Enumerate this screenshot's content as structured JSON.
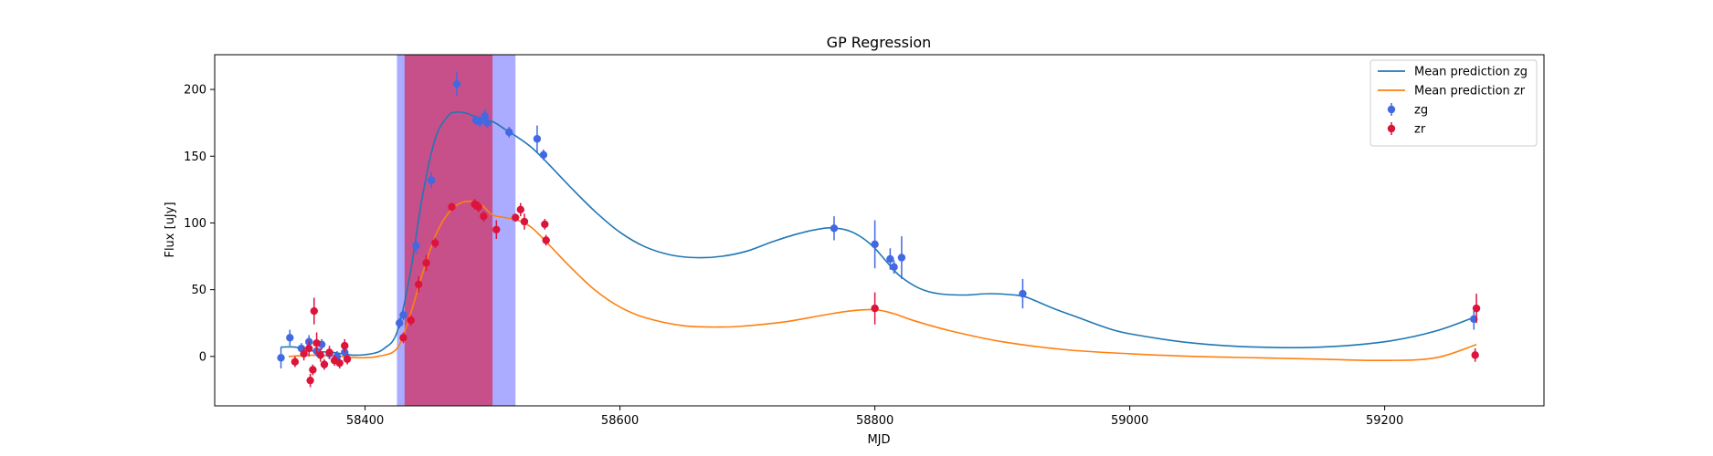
{
  "chart_data": {
    "type": "line",
    "title": "GP Regression",
    "xlabel": "MJD",
    "ylabel": "Flux [uJy]",
    "xlim": [
      58282,
      59325
    ],
    "ylim": [
      -37,
      226
    ],
    "xticks": [
      58400,
      58600,
      58800,
      59000,
      59200
    ],
    "yticks": [
      0,
      50,
      100,
      150,
      200
    ],
    "grid": false,
    "legend_position": "top-right",
    "legend": [
      {
        "label": "Mean prediction zg",
        "kind": "line",
        "color": "#1f77b4"
      },
      {
        "label": "Mean prediction zr",
        "kind": "line",
        "color": "#ff7f0e"
      },
      {
        "label": "zg",
        "kind": "errorbar",
        "color": "#4169e1"
      },
      {
        "label": "zr",
        "kind": "errorbar",
        "color": "#dc143c"
      }
    ],
    "shaded_regions": [
      {
        "x0": 58425,
        "x1": 58518,
        "color": "#0000ff",
        "opacity": 0.33
      },
      {
        "x0": 58431,
        "x1": 58500,
        "color": "#dc143c",
        "opacity": 0.6
      }
    ],
    "series": [
      {
        "name": "Mean prediction zg",
        "kind": "line",
        "color": "#1f77b4",
        "x": [
          58334,
          58345,
          58360,
          58375,
          58390,
          58405,
          58415,
          58425,
          58435,
          58445,
          58455,
          58465,
          58472,
          58480,
          58490,
          58500,
          58510,
          58520,
          58530,
          58540,
          58560,
          58580,
          58600,
          58620,
          58640,
          58660,
          58680,
          58700,
          58720,
          58740,
          58760,
          58770,
          58780,
          58790,
          58800,
          58810,
          58820,
          58835,
          58850,
          58870,
          58890,
          58910,
          58920,
          58940,
          58960,
          58980,
          59000,
          59050,
          59100,
          59150,
          59200,
          59240,
          59272
        ],
        "y": [
          7,
          7,
          4,
          3,
          1,
          2,
          6,
          18,
          60,
          120,
          163,
          180,
          183,
          182,
          178,
          176,
          170,
          164,
          157,
          148,
          128,
          109,
          93,
          82,
          76,
          74,
          75,
          79,
          86,
          92,
          96,
          96,
          94,
          89,
          81,
          70,
          60,
          51,
          47,
          46,
          47,
          46,
          44,
          36,
          29,
          22,
          17,
          10,
          7,
          7,
          11,
          19,
          30
        ]
      },
      {
        "name": "Mean prediction zr",
        "kind": "line",
        "color": "#ff7f0e",
        "x": [
          58340,
          58360,
          58380,
          58395,
          58410,
          58425,
          58435,
          58445,
          58455,
          58465,
          58475,
          58485,
          58492,
          58500,
          58510,
          58520,
          58530,
          58540,
          58560,
          58580,
          58600,
          58620,
          58650,
          58680,
          58700,
          58730,
          58760,
          58780,
          58800,
          58815,
          58830,
          58860,
          58900,
          58950,
          59000,
          59050,
          59100,
          59150,
          59200,
          59240,
          59272
        ],
        "y": [
          0,
          1,
          0,
          -1,
          0,
          6,
          30,
          62,
          90,
          107,
          115,
          116,
          113,
          106,
          104,
          102,
          97,
          88,
          68,
          50,
          37,
          29,
          23,
          22,
          23,
          26,
          31,
          34,
          35,
          32,
          27,
          19,
          11,
          5,
          2,
          0,
          -1,
          -2,
          -3,
          -1,
          9
        ]
      },
      {
        "name": "zg",
        "kind": "errorbar",
        "color": "#4169e1",
        "x": [
          58334,
          58341,
          58350,
          58356,
          58362,
          58366,
          58372,
          58378,
          58384,
          58427,
          58430,
          58440,
          58452,
          58472,
          58487,
          58490,
          58494,
          58496,
          58513,
          58535,
          58540,
          58768,
          58800,
          58812,
          58815,
          58821,
          58916,
          59270
        ],
        "y": [
          -1,
          14,
          6,
          11,
          4,
          9,
          2,
          0,
          3,
          25,
          31,
          83,
          132,
          204,
          177,
          176,
          180,
          175,
          168,
          163,
          151,
          96,
          84,
          73,
          67,
          74,
          47,
          28
        ],
        "err": [
          8,
          6,
          4,
          5,
          4,
          4,
          4,
          4,
          4,
          4,
          4,
          6,
          6,
          9,
          4,
          4,
          5,
          4,
          4,
          10,
          4,
          9,
          18,
          8,
          5,
          16,
          11,
          8
        ]
      },
      {
        "name": "zr",
        "kind": "errorbar",
        "color": "#dc143c",
        "x": [
          58345,
          58352,
          58356,
          58357,
          58359,
          58360,
          58362,
          58365,
          58368,
          58372,
          58376,
          58380,
          58384,
          58386,
          58430,
          58436,
          58442,
          58448,
          58455,
          58468,
          58486,
          58489,
          58493,
          58503,
          58518,
          58522,
          58525,
          58541,
          58542,
          58800,
          59271,
          59272
        ],
        "y": [
          -4,
          2,
          6,
          -18,
          -10,
          34,
          10,
          1,
          -6,
          3,
          -3,
          -5,
          8,
          -2,
          14,
          27,
          54,
          70,
          85,
          112,
          114,
          112,
          105,
          95,
          104,
          110,
          101,
          99,
          87,
          36,
          1,
          36
        ],
        "err": [
          4,
          5,
          6,
          5,
          4,
          10,
          8,
          5,
          4,
          5,
          4,
          4,
          5,
          4,
          4,
          4,
          6,
          6,
          4,
          3,
          4,
          4,
          4,
          7,
          3,
          5,
          6,
          4,
          4,
          12,
          5,
          11
        ]
      }
    ]
  }
}
